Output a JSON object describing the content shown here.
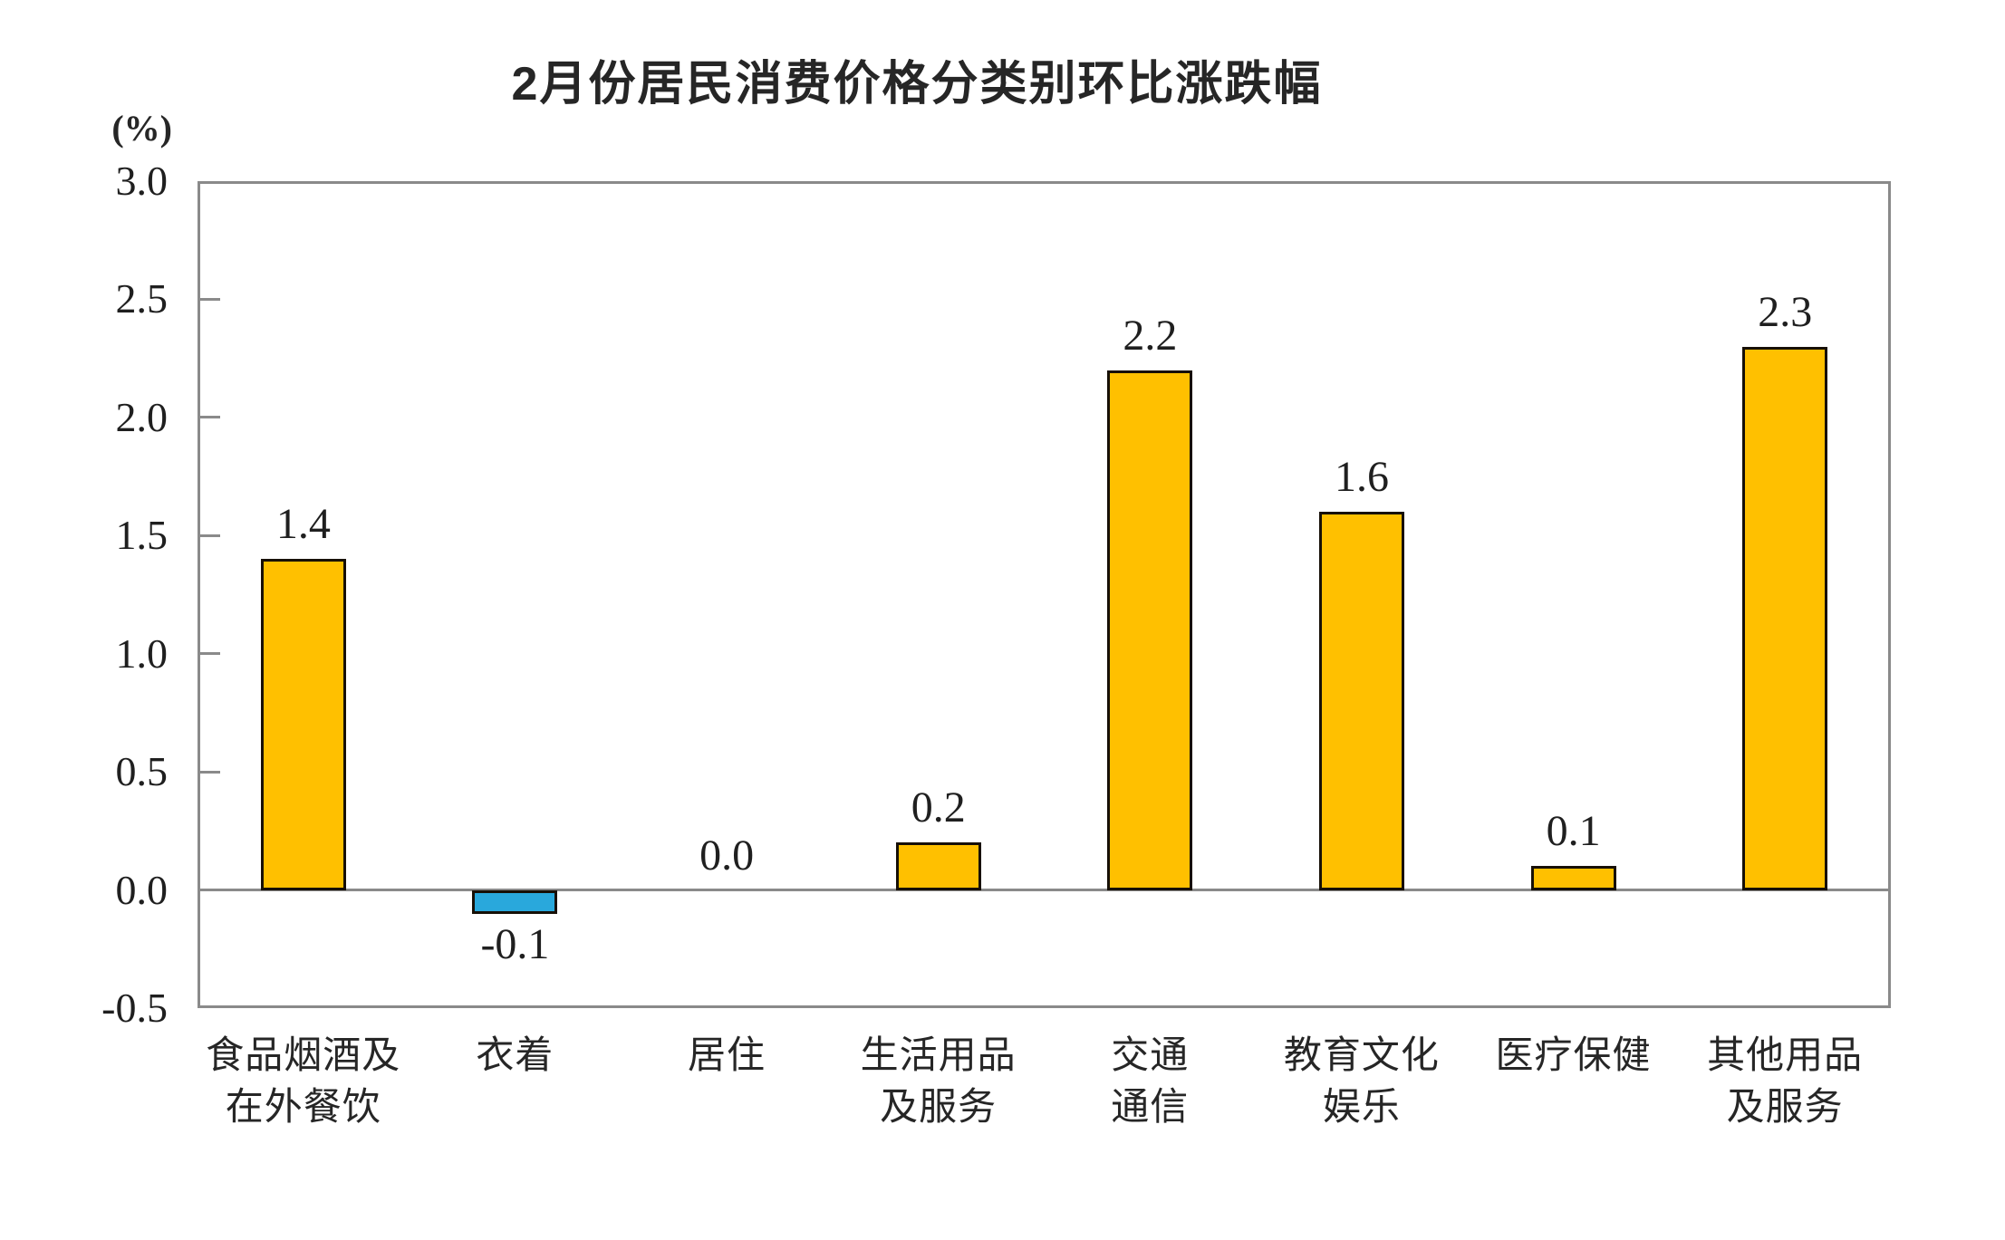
{
  "header": {
    "title": "2月份居民消费价格分类别环比涨跌幅"
  },
  "chart_data": {
    "type": "bar",
    "title": "2月份居民消费价格分类别环比涨跌幅",
    "unit_label": "(%)",
    "xlabel": "",
    "ylabel": "(%)",
    "ylim": [
      -0.5,
      3.0
    ],
    "yticks": [
      3.0,
      2.5,
      2.0,
      1.5,
      1.0,
      0.5,
      0.0,
      -0.5
    ],
    "ytick_labels": [
      "3.0",
      "2.5",
      "2.0",
      "1.5",
      "1.0",
      "0.5",
      "0.0",
      "-0.5"
    ],
    "grid": false,
    "legend": false,
    "categories": [
      "食品烟酒及在外餐饮",
      "衣着",
      "居住",
      "生活用品及服务",
      "交通通信",
      "教育文化娱乐",
      "医疗保健",
      "其他用品及服务"
    ],
    "category_lines": [
      [
        "食品烟酒及",
        "在外餐饮"
      ],
      [
        "衣着"
      ],
      [
        "居住"
      ],
      [
        "生活用品",
        "及服务"
      ],
      [
        "交通",
        "通信"
      ],
      [
        "教育文化",
        "娱乐"
      ],
      [
        "医疗保健"
      ],
      [
        "其他用品",
        "及服务"
      ]
    ],
    "values": [
      1.4,
      -0.1,
      0.0,
      0.2,
      2.2,
      1.6,
      0.1,
      2.3
    ],
    "data_labels": [
      "1.4",
      "-0.1",
      "0.0",
      "0.2",
      "2.2",
      "1.6",
      "0.1",
      "2.3"
    ],
    "bar_colors": [
      "#FFC000",
      "#29A8DC",
      "#FFC000",
      "#FFC000",
      "#FFC000",
      "#FFC000",
      "#FFC000",
      "#FFC000"
    ]
  },
  "colors": {
    "bar_positive": "#FFC000",
    "bar_negative": "#29A8DC",
    "bar_border": "#171007",
    "axis_gray": "#8a8a8a",
    "text": "#1f1f1f"
  }
}
